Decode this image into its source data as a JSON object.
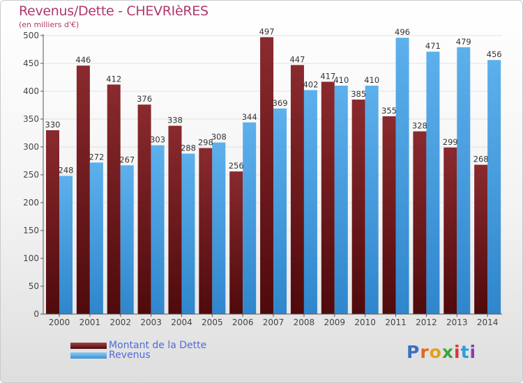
{
  "title": "Revenus/Dette - CHEVRIèRES",
  "subtitle": "(en milliers d'€)",
  "logo": {
    "letters": [
      "P",
      "r",
      "o",
      "x",
      "i",
      "t",
      "i"
    ],
    "colors": [
      "#3b6fc4",
      "#e06a1b",
      "#e0a21b",
      "#3aa63a",
      "#d33a3a",
      "#2b9fd8",
      "#8a3ab8"
    ]
  },
  "colors": {
    "dette": "#7a1f22",
    "dette_light": "#a04348",
    "revenus": "#4aa0e0",
    "revenus_light": "#7cc0f0",
    "grid": "#e2e2e2",
    "axis": "#555555"
  },
  "chart_data": {
    "type": "bar",
    "title": "Revenus/Dette - CHEVRIèRES",
    "subtitle": "(en milliers d'€)",
    "categories": [
      "2000",
      "2001",
      "2002",
      "2003",
      "2004",
      "2005",
      "2006",
      "2007",
      "2008",
      "2009",
      "2010",
      "2011",
      "2012",
      "2013",
      "2014"
    ],
    "series": [
      {
        "name": "Montant de la Dette",
        "values": [
          330,
          446,
          412,
          376,
          338,
          298,
          256,
          497,
          447,
          417,
          385,
          355,
          328,
          299,
          268
        ]
      },
      {
        "name": "Revenus",
        "values": [
          248,
          272,
          267,
          303,
          288,
          308,
          344,
          369,
          402,
          410,
          410,
          496,
          471,
          479,
          456
        ]
      }
    ],
    "ylim": [
      0,
      500
    ],
    "yticks": [
      0,
      50,
      100,
      150,
      200,
      250,
      300,
      350,
      400,
      450,
      500
    ],
    "grid": true,
    "legend": "bottom-left"
  }
}
